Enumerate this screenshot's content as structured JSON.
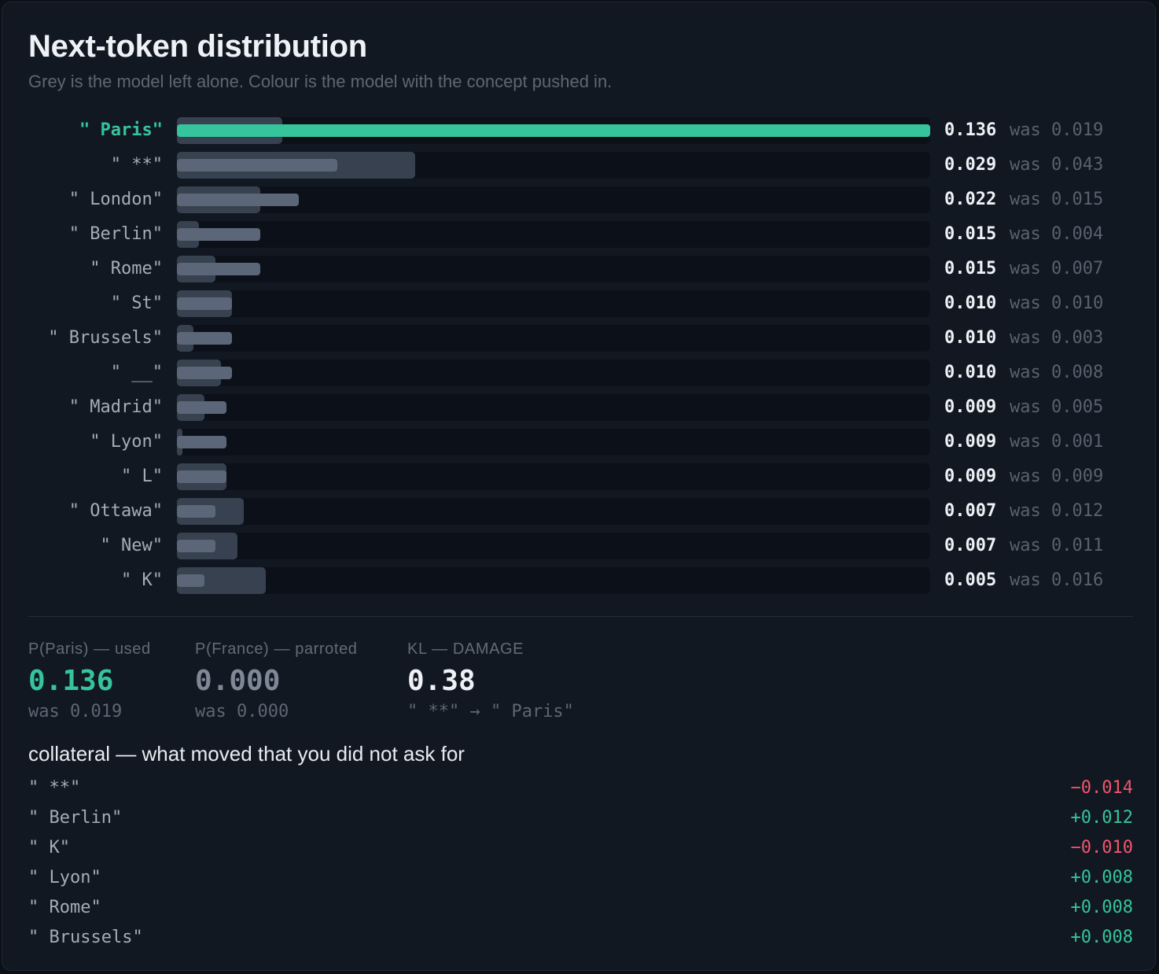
{
  "header": {
    "title": "Next-token distribution",
    "subtitle": "Grey is the model left alone. Colour is the model with the concept pushed in."
  },
  "colors": {
    "accent": "#35c49c",
    "negative": "#f0566b",
    "bar_new": "#5b6778",
    "bar_base": "#3a4452"
  },
  "was_prefix": "was",
  "chart_data": {
    "type": "bar",
    "orientation": "horizontal",
    "title": "Next-token distribution",
    "xlim": [
      0,
      0.136
    ],
    "categories": [
      "\" Paris\"",
      "\" **\"",
      "\" London\"",
      "\" Berlin\"",
      "\" Rome\"",
      "\" St\"",
      "\" Brussels\"",
      "\" __\"",
      "\" Madrid\"",
      "\" Lyon\"",
      "\" L\"",
      "\" Ottawa\"",
      "\" New\"",
      "\" K\""
    ],
    "highlight": "\" Paris\"",
    "series": [
      {
        "values": [
          0.136,
          0.029,
          0.022,
          0.015,
          0.015,
          0.01,
          0.01,
          0.01,
          0.009,
          0.009,
          0.009,
          0.007,
          0.007,
          0.005
        ],
        "labels": [
          "0.136",
          "0.029",
          "0.022",
          "0.015",
          "0.015",
          "0.010",
          "0.010",
          "0.010",
          "0.009",
          "0.009",
          "0.009",
          "0.007",
          "0.007",
          "0.005"
        ]
      },
      {
        "values": [
          0.019,
          0.043,
          0.015,
          0.004,
          0.007,
          0.01,
          0.003,
          0.008,
          0.005,
          0.001,
          0.009,
          0.012,
          0.011,
          0.016
        ],
        "labels": [
          "0.019",
          "0.043",
          "0.015",
          "0.004",
          "0.007",
          "0.010",
          "0.003",
          "0.008",
          "0.005",
          "0.001",
          "0.009",
          "0.012",
          "0.011",
          "0.016"
        ]
      }
    ]
  },
  "metrics": [
    {
      "label": "P(Paris) — used",
      "value": "0.136",
      "sub": "was 0.019",
      "color": "#35c49c"
    },
    {
      "label": "P(France) — parroted",
      "value": "0.000",
      "sub": "was 0.000",
      "color": "#7f8896"
    },
    {
      "label": "KL — DAMAGE",
      "value": "0.38",
      "sub": "\" **\" → \" Paris\"",
      "color": "#eef1f5"
    }
  ],
  "collateral": {
    "title": "collateral — what moved that you did not ask for",
    "items": [
      {
        "token": "\" **\"",
        "delta": "−0.014",
        "sign": "neg"
      },
      {
        "token": "\" Berlin\"",
        "delta": "+0.012",
        "sign": "pos"
      },
      {
        "token": "\" K\"",
        "delta": "−0.010",
        "sign": "neg"
      },
      {
        "token": "\" Lyon\"",
        "delta": "+0.008",
        "sign": "pos"
      },
      {
        "token": "\" Rome\"",
        "delta": "+0.008",
        "sign": "pos"
      },
      {
        "token": "\" Brussels\"",
        "delta": "+0.008",
        "sign": "pos"
      }
    ]
  }
}
